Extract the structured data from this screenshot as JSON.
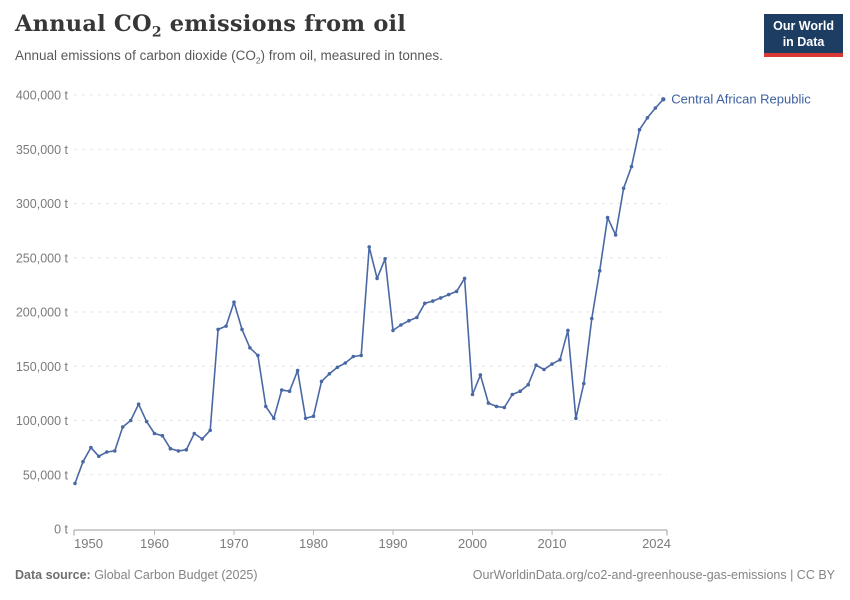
{
  "header": {
    "title": {
      "pre": "Annual CO",
      "sub": "2",
      "post": " emissions from oil"
    },
    "subtitle": {
      "pre": "Annual emissions of carbon dioxide (CO",
      "sub": "2",
      "post": ") from oil, measured in tonnes."
    }
  },
  "logo": {
    "line1": "Our World",
    "line2": "in Data",
    "bg_color": "#1d3d63",
    "accent_color": "#d93a34"
  },
  "footer": {
    "source_label": "Data source:",
    "source_value": " Global Carbon Budget (2025)",
    "url": "OurWorldinData.org/co2-and-greenhouse-gas-emissions",
    "separator": " | ",
    "license": "CC BY"
  },
  "chart_data": {
    "type": "line",
    "entity": "Central African Republic",
    "unit": "t",
    "x": [
      1950,
      1951,
      1952,
      1953,
      1954,
      1955,
      1956,
      1957,
      1958,
      1959,
      1960,
      1961,
      1962,
      1963,
      1964,
      1965,
      1966,
      1967,
      1968,
      1969,
      1970,
      1971,
      1972,
      1973,
      1974,
      1975,
      1976,
      1977,
      1978,
      1979,
      1980,
      1981,
      1982,
      1983,
      1984,
      1985,
      1986,
      1987,
      1988,
      1989,
      1990,
      1991,
      1992,
      1993,
      1994,
      1995,
      1996,
      1997,
      1998,
      1999,
      2000,
      2001,
      2002,
      2003,
      2004,
      2005,
      2006,
      2007,
      2008,
      2009,
      2010,
      2011,
      2012,
      2013,
      2014,
      2015,
      2016,
      2017,
      2018,
      2019,
      2020,
      2021,
      2022,
      2023,
      2024
    ],
    "values": [
      42000,
      62000,
      75000,
      67000,
      71000,
      72000,
      94000,
      100000,
      115000,
      99000,
      88000,
      86000,
      74000,
      72000,
      73000,
      88000,
      83000,
      91000,
      184000,
      187000,
      209000,
      184000,
      167000,
      160000,
      113000,
      102000,
      128000,
      127000,
      146000,
      102000,
      104000,
      136000,
      143000,
      149000,
      153000,
      159000,
      160000,
      260000,
      231000,
      249000,
      183000,
      188000,
      192000,
      195000,
      208000,
      210000,
      213000,
      216000,
      219000,
      231000,
      124000,
      142000,
      116000,
      113000,
      112000,
      124000,
      127000,
      133000,
      151000,
      147000,
      152000,
      156000,
      183000,
      102000,
      134000,
      194000,
      238000,
      287000,
      271000,
      314000,
      334000,
      368000,
      379000,
      388000,
      396000
    ],
    "ylim": [
      0,
      400000
    ],
    "ytick_values": [
      0,
      50000,
      100000,
      150000,
      200000,
      250000,
      300000,
      350000,
      400000
    ],
    "ytick_labels": [
      "0 t",
      "50,000 t",
      "100,000 t",
      "150,000 t",
      "200,000 t",
      "250,000 t",
      "300,000 t",
      "350,000 t",
      "400,000 t"
    ],
    "xticks": [
      1950,
      1960,
      1970,
      1980,
      1990,
      2000,
      2010,
      2024
    ],
    "grid": "dashed",
    "legend_position": "end-of-line-label",
    "colors": {
      "line": "#4a69a4",
      "entity_label": "#3d5fa0",
      "grid": "#e4e4e4",
      "axis": "#9e9e9e",
      "tick": "#b5b5b5",
      "tick_text": "#7b7b7b"
    }
  }
}
